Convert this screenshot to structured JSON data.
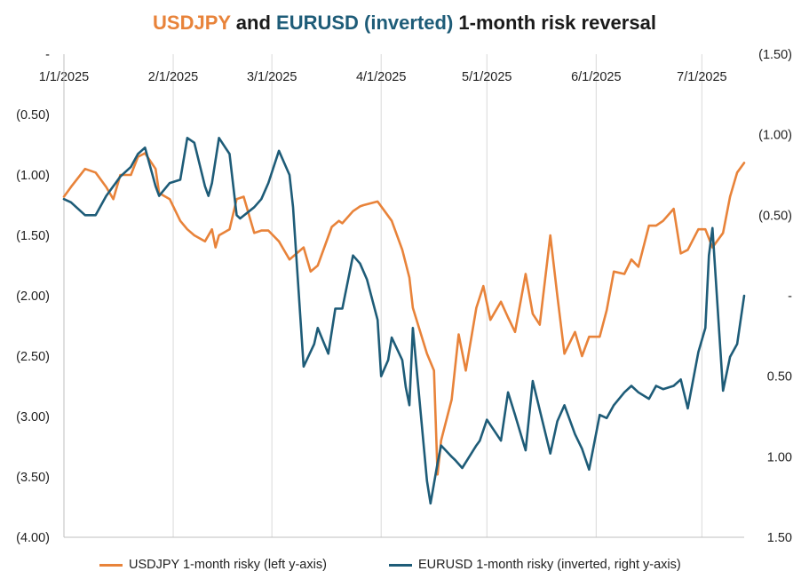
{
  "title": {
    "part1": "USDJPY",
    "part2": " and ",
    "part3": "EURUSD (inverted)",
    "part4": " 1-month risk reversal"
  },
  "colors": {
    "usdjpy": "#E8833A",
    "eurusd": "#1E5C78",
    "grid": "#d9d9d9"
  },
  "legend": {
    "usdjpy": "USDJPY 1-month risky (left y-axis)",
    "eurusd": "EURUSD 1-month risky (inverted, right y-axis)"
  },
  "chart_data": {
    "type": "line",
    "x_ticks": [
      "1/1/2025",
      "2/1/2025",
      "3/1/2025",
      "4/1/2025",
      "5/1/2025",
      "6/1/2025",
      "7/1/2025"
    ],
    "x_range": [
      "2025-01-01",
      "2025-07-13"
    ],
    "left_axis": {
      "ylim": [
        -4.0,
        0.0
      ],
      "tick_values": [
        0,
        -0.5,
        -1.0,
        -1.5,
        -2.0,
        -2.5,
        -3.0,
        -3.5,
        -4.0
      ],
      "tick_labels": [
        "-",
        "(0.50)",
        "(1.00)",
        "(1.50)",
        "(2.00)",
        "(2.50)",
        "(3.00)",
        "(3.50)",
        "(4.00)"
      ]
    },
    "right_axis": {
      "inverted": true,
      "ylim": [
        -1.5,
        1.5
      ],
      "tick_values": [
        -1.5,
        -1.0,
        -0.5,
        0.0,
        0.5,
        1.0,
        1.5
      ],
      "tick_labels": [
        "(1.50)",
        "(1.00)",
        "(0.50)",
        "-",
        "0.50",
        "1.00",
        "1.50"
      ]
    },
    "grid": "vertical",
    "legend_position": "bottom",
    "series": [
      {
        "name": "USDJPY 1-month risky (left y-axis)",
        "axis": "left",
        "x": [
          "2025-01-01",
          "2025-01-03",
          "2025-01-07",
          "2025-01-10",
          "2025-01-13",
          "2025-01-15",
          "2025-01-17",
          "2025-01-20",
          "2025-01-22",
          "2025-01-24",
          "2025-01-27",
          "2025-01-28",
          "2025-01-31",
          "2025-02-03",
          "2025-02-05",
          "2025-02-07",
          "2025-02-10",
          "2025-02-12",
          "2025-02-13",
          "2025-02-14",
          "2025-02-17",
          "2025-02-19",
          "2025-02-21",
          "2025-02-24",
          "2025-02-26",
          "2025-02-28",
          "2025-03-03",
          "2025-03-05",
          "2025-03-06",
          "2025-03-10",
          "2025-03-12",
          "2025-03-14",
          "2025-03-18",
          "2025-03-20",
          "2025-03-21",
          "2025-03-24",
          "2025-03-26",
          "2025-03-27",
          "2025-03-31",
          "2025-04-02",
          "2025-04-04",
          "2025-04-07",
          "2025-04-09",
          "2025-04-10",
          "2025-04-14",
          "2025-04-16",
          "2025-04-17",
          "2025-04-18",
          "2025-04-21",
          "2025-04-23",
          "2025-04-25",
          "2025-04-28",
          "2025-04-30",
          "2025-05-02",
          "2025-05-05",
          "2025-05-07",
          "2025-05-09",
          "2025-05-12",
          "2025-05-14",
          "2025-05-16",
          "2025-05-19",
          "2025-05-21",
          "2025-05-23",
          "2025-05-26",
          "2025-05-28",
          "2025-05-30",
          "2025-06-02",
          "2025-06-04",
          "2025-06-06",
          "2025-06-09",
          "2025-06-11",
          "2025-06-13",
          "2025-06-16",
          "2025-06-18",
          "2025-06-20",
          "2025-06-23",
          "2025-06-25",
          "2025-06-27",
          "2025-06-30",
          "2025-07-02",
          "2025-07-04",
          "2025-07-07",
          "2025-07-09",
          "2025-07-11",
          "2025-07-13"
        ],
        "values": [
          -1.18,
          -1.1,
          -0.95,
          -0.98,
          -1.1,
          -1.2,
          -1.0,
          -1.0,
          -0.85,
          -0.82,
          -0.95,
          -1.15,
          -1.2,
          -1.38,
          -1.45,
          -1.5,
          -1.55,
          -1.45,
          -1.6,
          -1.5,
          -1.45,
          -1.2,
          -1.18,
          -1.48,
          -1.46,
          -1.46,
          -1.55,
          -1.65,
          -1.7,
          -1.6,
          -1.8,
          -1.75,
          -1.43,
          -1.38,
          -1.4,
          -1.3,
          -1.26,
          -1.25,
          -1.22,
          -1.3,
          -1.38,
          -1.62,
          -1.85,
          -2.1,
          -2.48,
          -2.62,
          -3.48,
          -3.2,
          -2.86,
          -2.32,
          -2.62,
          -2.1,
          -1.92,
          -2.2,
          -2.05,
          -2.18,
          -2.3,
          -1.82,
          -2.15,
          -2.24,
          -1.5,
          -2.0,
          -2.48,
          -2.3,
          -2.5,
          -2.34,
          -2.34,
          -2.12,
          -1.8,
          -1.82,
          -1.7,
          -1.76,
          -1.42,
          -1.42,
          -1.38,
          -1.28,
          -1.65,
          -1.62,
          -1.45,
          -1.45,
          -1.6,
          -1.48,
          -1.18,
          -0.98,
          -0.9
        ]
      },
      {
        "name": "EURUSD 1-month risky (inverted, right y-axis)",
        "axis": "right",
        "x": [
          "2025-01-01",
          "2025-01-03",
          "2025-01-07",
          "2025-01-09",
          "2025-01-10",
          "2025-01-13",
          "2025-01-15",
          "2025-01-17",
          "2025-01-20",
          "2025-01-22",
          "2025-01-24",
          "2025-01-27",
          "2025-01-28",
          "2025-01-31",
          "2025-02-03",
          "2025-02-05",
          "2025-02-07",
          "2025-02-10",
          "2025-02-11",
          "2025-02-12",
          "2025-02-14",
          "2025-02-17",
          "2025-02-19",
          "2025-02-20",
          "2025-02-24",
          "2025-02-26",
          "2025-02-28",
          "2025-03-03",
          "2025-03-05",
          "2025-03-06",
          "2025-03-07",
          "2025-03-10",
          "2025-03-13",
          "2025-03-14",
          "2025-03-17",
          "2025-03-19",
          "2025-03-21",
          "2025-03-24",
          "2025-03-26",
          "2025-03-28",
          "2025-03-31",
          "2025-04-01",
          "2025-04-03",
          "2025-04-04",
          "2025-04-07",
          "2025-04-08",
          "2025-04-09",
          "2025-04-10",
          "2025-04-14",
          "2025-04-15",
          "2025-04-17",
          "2025-04-18",
          "2025-04-21",
          "2025-04-22",
          "2025-04-24",
          "2025-04-28",
          "2025-04-29",
          "2025-05-01",
          "2025-05-05",
          "2025-05-07",
          "2025-05-09",
          "2025-05-12",
          "2025-05-14",
          "2025-05-19",
          "2025-05-21",
          "2025-05-23",
          "2025-05-26",
          "2025-05-28",
          "2025-05-30",
          "2025-06-02",
          "2025-06-04",
          "2025-06-06",
          "2025-06-09",
          "2025-06-11",
          "2025-06-13",
          "2025-06-16",
          "2025-06-18",
          "2025-06-20",
          "2025-06-23",
          "2025-06-25",
          "2025-06-27",
          "2025-06-30",
          "2025-07-02",
          "2025-07-03",
          "2025-07-04",
          "2025-07-07",
          "2025-07-09",
          "2025-07-11",
          "2025-07-13"
        ],
        "values": [
          -0.6,
          -0.58,
          -0.5,
          -0.5,
          -0.5,
          -0.62,
          -0.68,
          -0.74,
          -0.8,
          -0.88,
          -0.92,
          -0.68,
          -0.62,
          -0.7,
          -0.72,
          -0.98,
          -0.95,
          -0.68,
          -0.62,
          -0.7,
          -0.98,
          -0.88,
          -0.5,
          -0.48,
          -0.55,
          -0.6,
          -0.7,
          -0.9,
          -0.8,
          -0.75,
          -0.55,
          0.44,
          0.3,
          0.2,
          0.36,
          0.08,
          0.08,
          -0.25,
          -0.2,
          -0.1,
          0.15,
          0.5,
          0.4,
          0.26,
          0.4,
          0.57,
          0.68,
          0.2,
          1.15,
          1.29,
          1.04,
          0.93,
          1.0,
          1.02,
          1.07,
          0.93,
          0.9,
          0.77,
          0.9,
          0.6,
          0.74,
          0.96,
          0.53,
          0.98,
          0.78,
          0.68,
          0.86,
          0.95,
          1.08,
          0.74,
          0.76,
          0.68,
          0.6,
          0.56,
          0.6,
          0.64,
          0.56,
          0.58,
          0.56,
          0.52,
          0.7,
          0.35,
          0.2,
          -0.25,
          -0.42,
          0.59,
          0.38,
          0.3,
          0.0
        ]
      }
    ]
  }
}
